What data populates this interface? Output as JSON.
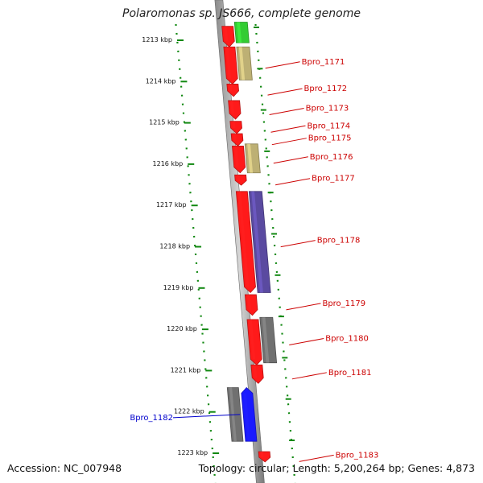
{
  "map": {
    "title": "Polaromonas sp. JS666, complete genome",
    "accession": "Accession: NC_007948",
    "summary": "Topology: circular; Length: 5,200,264 bp; Genes: 4,873"
  },
  "colors": {
    "forward_cds": "#ff1a1a",
    "rna_green": "#33cc33",
    "khaki": "#bdb074",
    "slate": "#5a4aa0",
    "gray": "#707070",
    "blue": "#1a1aff",
    "label_red": "#cc0000",
    "label_blue": "#0000cc",
    "tick_green": "#118811"
  },
  "chart_data": {
    "type": "genome-map",
    "ticks_kbp": [
      1213,
      1214,
      1215,
      1216,
      1217,
      1218,
      1219,
      1220,
      1221,
      1222,
      1223
    ],
    "tick_labels": [
      "1213 kbp",
      "1214 kbp",
      "1215 kbp",
      "1216 kbp",
      "1217 kbp",
      "1218 kbp",
      "1219 kbp",
      "1220 kbp",
      "1221 kbp",
      "1222 kbp",
      "1223 kbp"
    ],
    "genes": [
      {
        "start": 1212.7,
        "end": 1213.2,
        "track": "forward",
        "color": "forward_cds"
      },
      {
        "start": 1212.6,
        "end": 1213.1,
        "track": "outer",
        "color": "rna_green"
      },
      {
        "start": 1213.2,
        "end": 1214.1,
        "track": "forward",
        "color": "forward_cds"
      },
      {
        "start": 1213.2,
        "end": 1214.0,
        "track": "outer",
        "color": "khaki",
        "label": "Bpro_1171"
      },
      {
        "start": 1214.1,
        "end": 1214.4,
        "track": "forward",
        "color": "forward_cds",
        "label": "Bpro_1172"
      },
      {
        "start": 1214.5,
        "end": 1214.95,
        "track": "forward",
        "color": "forward_cds",
        "label": "Bpro_1173"
      },
      {
        "start": 1215.0,
        "end": 1215.3,
        "track": "forward",
        "color": "forward_cds",
        "label": "Bpro_1174"
      },
      {
        "start": 1215.3,
        "end": 1215.6,
        "track": "forward",
        "color": "forward_cds",
        "label": "Bpro_1175"
      },
      {
        "start": 1215.6,
        "end": 1216.25,
        "track": "forward",
        "color": "forward_cds"
      },
      {
        "start": 1215.55,
        "end": 1216.25,
        "track": "outer",
        "color": "khaki",
        "label": "Bpro_1176"
      },
      {
        "start": 1216.3,
        "end": 1216.55,
        "track": "forward",
        "color": "forward_cds",
        "label": "Bpro_1177"
      },
      {
        "start": 1216.7,
        "end": 1219.15,
        "track": "forward",
        "color": "forward_cds"
      },
      {
        "start": 1216.7,
        "end": 1219.15,
        "track": "outer",
        "color": "slate",
        "label": "Bpro_1178"
      },
      {
        "start": 1219.2,
        "end": 1219.7,
        "track": "forward",
        "color": "forward_cds",
        "label": "Bpro_1179"
      },
      {
        "start": 1219.8,
        "end": 1220.9,
        "track": "forward",
        "color": "forward_cds"
      },
      {
        "start": 1219.75,
        "end": 1220.85,
        "track": "outer",
        "color": "gray",
        "label": "Bpro_1180"
      },
      {
        "start": 1220.9,
        "end": 1221.35,
        "track": "forward",
        "color": "forward_cds",
        "label": "Bpro_1181"
      },
      {
        "start": 1221.45,
        "end": 1222.75,
        "track": "rev_outer",
        "color": "gray"
      },
      {
        "start": 1221.45,
        "end": 1222.75,
        "track": "reverse",
        "color": "blue",
        "label": "Bpro_1182",
        "label_side": "left"
      },
      {
        "start": 1223.0,
        "end": 1223.25,
        "track": "forward",
        "color": "forward_cds",
        "label": "Bpro_1183"
      }
    ]
  }
}
